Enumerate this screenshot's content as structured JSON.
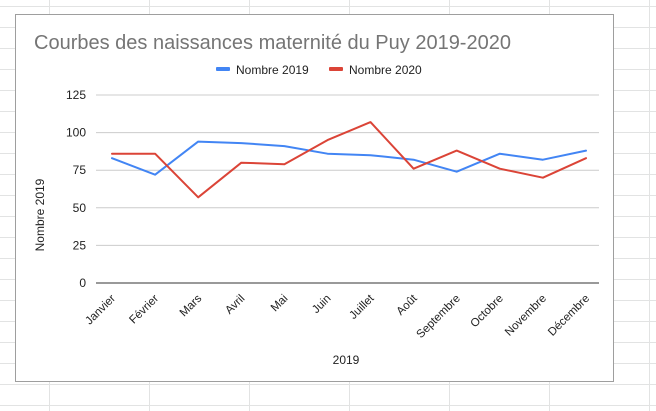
{
  "chart_data": {
    "type": "line",
    "title": "Courbes des naissances maternité du Puy 2019-2020",
    "xlabel": "2019",
    "ylabel": "Nombre 2019",
    "categories": [
      "Janvier",
      "Février",
      "Mars",
      "Avril",
      "Mai",
      "Juin",
      "Juillet",
      "Août",
      "Septembre",
      "Octobre",
      "Novembre",
      "Décembre"
    ],
    "series": [
      {
        "name": "Nombre 2019",
        "color": "#4285f4",
        "values": [
          83,
          72,
          94,
          93,
          91,
          86,
          85,
          82,
          74,
          86,
          82,
          88
        ]
      },
      {
        "name": "Nombre 2020",
        "color": "#db4437",
        "values": [
          86,
          86,
          57,
          80,
          79,
          95,
          107,
          76,
          88,
          76,
          70,
          83
        ]
      }
    ],
    "ylim": [
      0,
      125
    ],
    "yticks": [
      "0",
      "25",
      "50",
      "75",
      "100",
      "125"
    ],
    "grid": true,
    "legend_position": "top-center"
  }
}
